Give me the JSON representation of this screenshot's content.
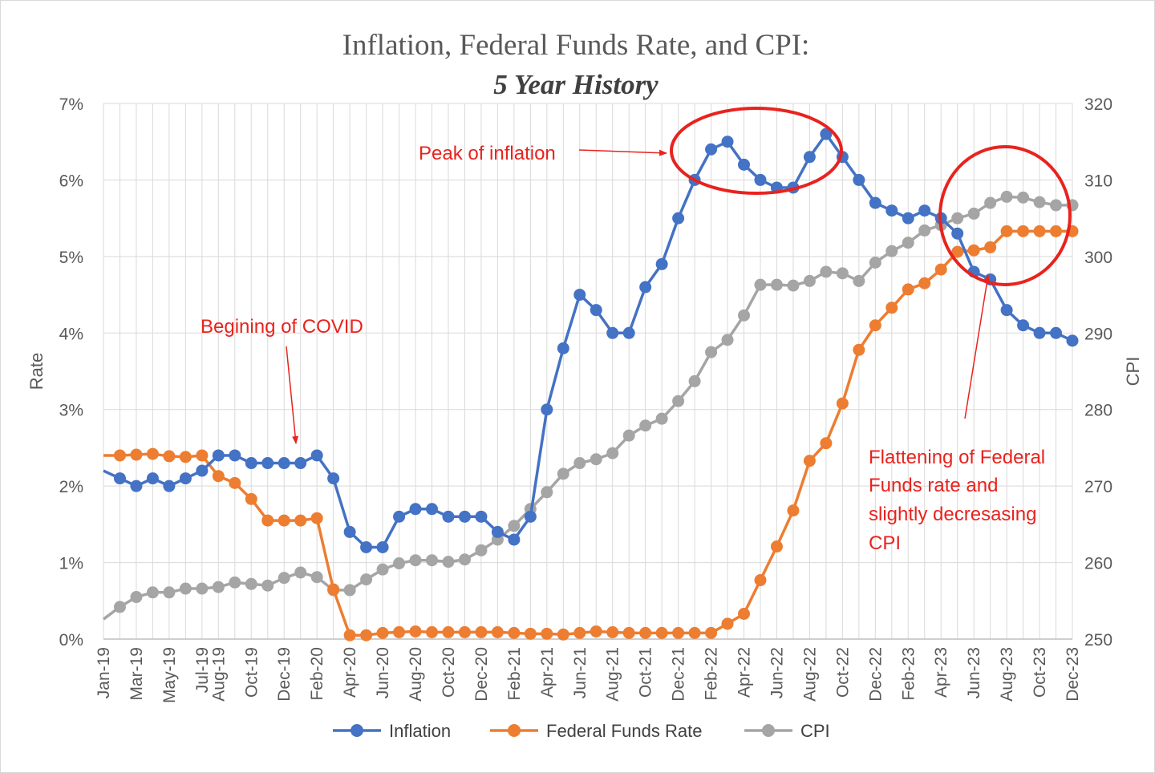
{
  "chart_data": {
    "type": "line",
    "title": "Inflation, Federal Funds Rate, and CPI:",
    "subtitle": "5 Year History",
    "ylabel": "Rate",
    "y2label": "CPI",
    "ylim": [
      0,
      7
    ],
    "y2lim": [
      250,
      320
    ],
    "yticks": [
      "0%",
      "1%",
      "2%",
      "3%",
      "4%",
      "5%",
      "6%",
      "7%"
    ],
    "y2ticks": [
      "250",
      "260",
      "270",
      "280",
      "290",
      "300",
      "310",
      "320"
    ],
    "grid": true,
    "legend_position": "bottom",
    "x": [
      "Jan-19",
      "Feb-19",
      "Mar-19",
      "Apr-19",
      "May-19",
      "Jun-19",
      "Jul-19",
      "Aug-19",
      "Sep-19",
      "Oct-19",
      "Nov-19",
      "Dec-19",
      "Jan-20",
      "Feb-20",
      "Mar-20",
      "Apr-20",
      "May-20",
      "Jun-20",
      "Jul-20",
      "Aug-20",
      "Sep-20",
      "Oct-20",
      "Nov-20",
      "Dec-20",
      "Jan-21",
      "Feb-21",
      "Mar-21",
      "Apr-21",
      "May-21",
      "Jun-21",
      "Jul-21",
      "Aug-21",
      "Sep-21",
      "Oct-21",
      "Nov-21",
      "Dec-21",
      "Jan-22",
      "Feb-22",
      "Mar-22",
      "Apr-22",
      "May-22",
      "Jun-22",
      "Jul-22",
      "Aug-22",
      "Sep-22",
      "Oct-22",
      "Nov-22",
      "Dec-22",
      "Jan-23",
      "Feb-23",
      "Mar-23",
      "Apr-23",
      "May-23",
      "Jun-23",
      "Jul-23",
      "Aug-23",
      "Sep-23",
      "Oct-23",
      "Nov-23",
      "Dec-23"
    ],
    "xticks": [
      "Jan-19",
      "Mar-19",
      "May-19",
      "Jul-19",
      "Aug-19",
      "Oct-19",
      "Dec-19",
      "Feb-20",
      "Apr-20",
      "Jun-20",
      "Aug-20",
      "Oct-20",
      "Dec-20",
      "Feb-21",
      "Apr-21",
      "Jun-21",
      "Aug-21",
      "Oct-21",
      "Dec-21",
      "Feb-22",
      "Apr-22",
      "Jun-22",
      "Aug-22",
      "Oct-22",
      "Dec-22",
      "Feb-23",
      "Apr-23",
      "Jun-23",
      "Aug-23",
      "Oct-23",
      "Dec-23"
    ],
    "series": [
      {
        "name": "Inflation",
        "axis": "left",
        "color": "#4472c4",
        "values": [
          2.2,
          2.1,
          2.0,
          2.1,
          2.0,
          2.1,
          2.2,
          2.4,
          2.4,
          2.3,
          2.3,
          2.3,
          2.3,
          2.4,
          2.1,
          1.4,
          1.2,
          1.2,
          1.6,
          1.7,
          1.7,
          1.6,
          1.6,
          1.6,
          1.4,
          1.3,
          1.6,
          3.0,
          3.8,
          4.5,
          4.3,
          4.0,
          4.0,
          4.6,
          4.9,
          5.5,
          6.0,
          6.4,
          6.5,
          6.2,
          6.0,
          5.9,
          5.9,
          6.3,
          6.6,
          6.3,
          6.0,
          5.7,
          5.6,
          5.5,
          5.6,
          5.5,
          5.3,
          4.8,
          4.7,
          4.3,
          4.1,
          4.0,
          4.0,
          3.9
        ]
      },
      {
        "name": "Federal Funds Rate",
        "axis": "left",
        "color": "#ed7d31",
        "values": [
          2.4,
          2.4,
          2.41,
          2.42,
          2.39,
          2.38,
          2.4,
          2.13,
          2.04,
          1.83,
          1.55,
          1.55,
          1.55,
          1.58,
          0.65,
          0.05,
          0.05,
          0.08,
          0.09,
          0.1,
          0.09,
          0.09,
          0.09,
          0.09,
          0.09,
          0.08,
          0.07,
          0.07,
          0.06,
          0.08,
          0.1,
          0.09,
          0.08,
          0.08,
          0.08,
          0.08,
          0.08,
          0.08,
          0.2,
          0.33,
          0.77,
          1.21,
          1.68,
          2.33,
          2.56,
          3.08,
          3.78,
          4.1,
          4.33,
          4.57,
          4.65,
          4.83,
          5.06,
          5.08,
          5.12,
          5.33,
          5.33,
          5.33,
          5.33,
          5.33
        ]
      },
      {
        "name": "CPI",
        "axis": "right",
        "color": "#a5a5a5",
        "values": [
          252.6,
          254.2,
          255.5,
          256.1,
          256.1,
          256.6,
          256.6,
          256.8,
          257.4,
          257.2,
          257.0,
          258.0,
          258.7,
          258.1,
          256.4,
          256.4,
          257.8,
          259.1,
          259.9,
          260.3,
          260.3,
          260.1,
          260.4,
          261.6,
          263.0,
          264.8,
          267.0,
          269.2,
          271.6,
          273.0,
          273.5,
          274.3,
          276.6,
          277.9,
          278.8,
          281.1,
          283.7,
          287.5,
          289.1,
          292.3,
          296.3,
          296.3,
          296.2,
          296.8,
          298.0,
          297.8,
          296.8,
          299.2,
          300.7,
          301.8,
          303.4,
          304.1,
          305.0,
          305.6,
          307.0,
          307.8,
          307.7,
          307.1,
          306.7,
          306.7
        ]
      }
    ],
    "annotations": [
      {
        "text": "Begining of COVID"
      },
      {
        "text": "Peak of inflation"
      },
      {
        "lines": [
          "Flattening of Federal",
          "Funds rate and",
          "slightly decresasing",
          "CPI"
        ]
      }
    ]
  }
}
